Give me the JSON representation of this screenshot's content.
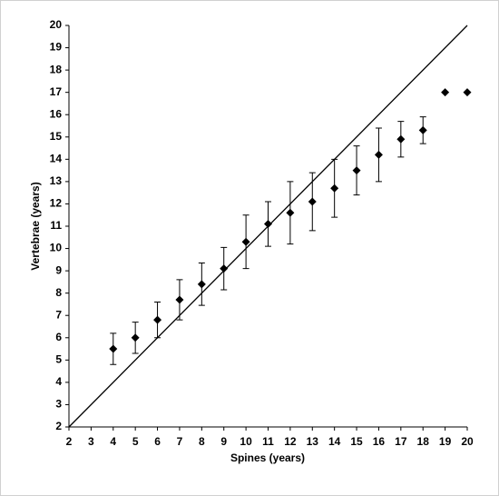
{
  "chart_data": {
    "type": "scatter",
    "xlabel": "Spines (years)",
    "ylabel": "Vertebrae (years)",
    "xlim": [
      2,
      20
    ],
    "ylim": [
      2,
      20
    ],
    "xticks": [
      2,
      3,
      4,
      5,
      6,
      7,
      8,
      9,
      10,
      11,
      12,
      13,
      14,
      15,
      16,
      17,
      18,
      19,
      20
    ],
    "yticks": [
      2,
      3,
      4,
      5,
      6,
      7,
      8,
      9,
      10,
      11,
      12,
      13,
      14,
      15,
      16,
      17,
      18,
      19,
      20
    ],
    "grid": false,
    "series": [
      {
        "type": "scatter",
        "color": "#000000",
        "x": [
          4,
          5,
          6,
          7,
          8,
          9,
          10,
          11,
          12,
          13,
          14,
          15,
          16,
          17,
          18,
          19,
          20
        ],
        "values": [
          5.5,
          6.0,
          6.8,
          7.7,
          8.4,
          9.1,
          10.3,
          11.1,
          11.6,
          12.1,
          12.7,
          13.5,
          14.2,
          14.9,
          15.3,
          17,
          17
        ],
        "errors": [
          0.7,
          0.7,
          0.8,
          0.9,
          0.95,
          0.95,
          1.2,
          1.0,
          1.4,
          1.3,
          1.3,
          1.1,
          1.2,
          0.8,
          0.6,
          null,
          null
        ]
      },
      {
        "type": "line",
        "color": "#000000",
        "x": [
          2,
          20
        ],
        "values": [
          2,
          20
        ]
      }
    ]
  }
}
